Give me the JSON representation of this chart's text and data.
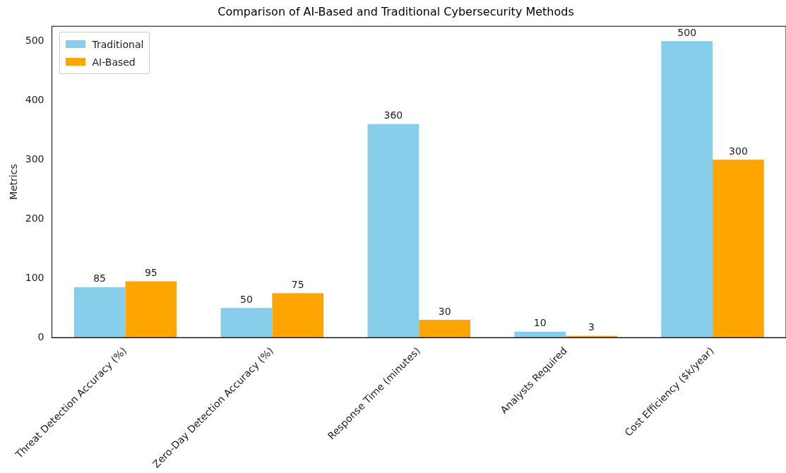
{
  "chart_data": {
    "type": "bar",
    "title": "Comparison of AI-Based and Traditional Cybersecurity Methods",
    "ylabel": "Metrics",
    "categories": [
      "Threat Detection Accuracy (%)",
      "Zero-Day Detection Accuracy (%)",
      "Response Time (minutes)",
      "Analysts Required",
      "Cost Efficiency ($k/year)"
    ],
    "series": [
      {
        "name": "Traditional",
        "color": "#87ceeb",
        "values": [
          85,
          50,
          360,
          10,
          500
        ]
      },
      {
        "name": "AI-Based",
        "color": "#ffa500",
        "values": [
          95,
          75,
          30,
          3,
          300
        ]
      }
    ],
    "ylim": [
      0,
      525
    ],
    "yticks": [
      0,
      100,
      200,
      300,
      400,
      500
    ],
    "grid": false,
    "legend": "top left",
    "data_labels": true
  }
}
